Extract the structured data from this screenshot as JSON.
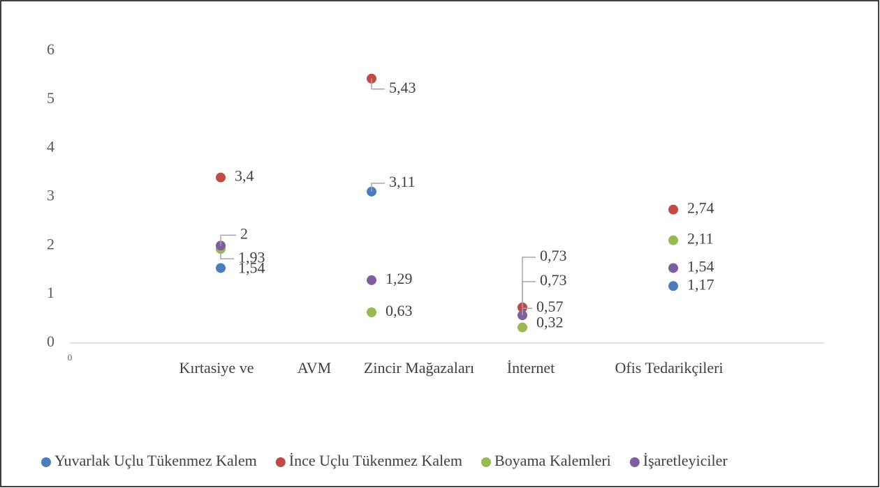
{
  "chart_data": {
    "type": "scatter",
    "x_labels": [
      "Kırtasiye ve",
      "AVM",
      "Zincir Mağazaları",
      "İnternet",
      "Ofis Tedarikçileri"
    ],
    "xlim": [
      0,
      5
    ],
    "xticks": [
      0
    ],
    "ylim": [
      0,
      6
    ],
    "yticks": [
      0,
      1,
      2,
      3,
      4,
      5,
      6
    ],
    "legend": "bottom",
    "series": [
      {
        "name": "Yuvarlak Uçlu Tükenmez Kalem",
        "color": "#4a7ebb",
        "x": [
          1,
          2,
          3,
          4
        ],
        "values": [
          1.54,
          3.11,
          0.73,
          1.17
        ],
        "value_labels": [
          "1,54",
          "3,11",
          "0,73",
          "1,17"
        ]
      },
      {
        "name": "İnce Uçlu Tükenmez Kalem",
        "color": "#be4b48",
        "x": [
          1,
          2,
          3,
          4
        ],
        "values": [
          3.4,
          5.43,
          0.73,
          2.74
        ],
        "value_labels": [
          "3,4",
          "5,43",
          "0,73",
          "2,74"
        ]
      },
      {
        "name": "Boyama Kalemleri",
        "color": "#98b954",
        "x": [
          1,
          2,
          3,
          4
        ],
        "values": [
          1.93,
          0.63,
          0.32,
          2.11
        ],
        "value_labels": [
          "1,93",
          "0,63",
          "0,32",
          "2,11"
        ]
      },
      {
        "name": "İşaretleyiciler",
        "color": "#7d5fa0",
        "x": [
          1,
          2,
          3,
          4
        ],
        "values": [
          2,
          1.29,
          0.57,
          1.54
        ],
        "value_labels": [
          "2",
          "1,29",
          "0,57",
          "1,54"
        ]
      }
    ]
  }
}
